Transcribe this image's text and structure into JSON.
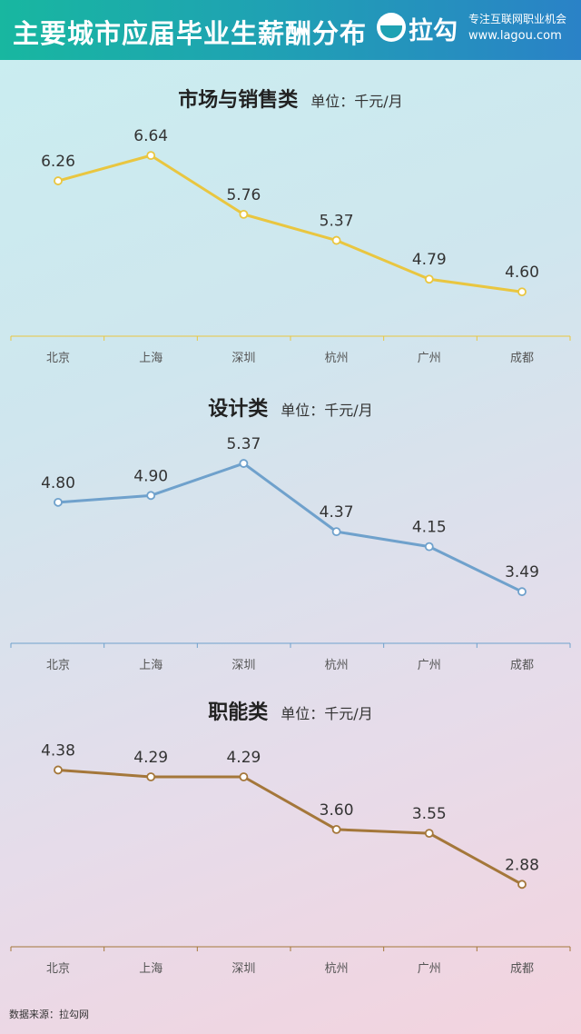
{
  "header": {
    "title": "主要城市应届毕业生薪酬分布",
    "brand": "拉勾",
    "slogan": "专注互联网职业机会",
    "site": "www.lagou.com",
    "logo_icon": "lagou-smile-logo-icon"
  },
  "chart_data": [
    {
      "type": "line",
      "title": "市场与销售类",
      "unit": "单位：千元/月",
      "categories": [
        "北京",
        "上海",
        "深圳",
        "杭州",
        "广州",
        "成都"
      ],
      "values": [
        6.26,
        6.64,
        5.76,
        5.37,
        4.79,
        4.6
      ],
      "labels": [
        "6.26",
        "6.64",
        "5.76",
        "5.37",
        "4.79",
        "4.60"
      ],
      "color": "#e9c640",
      "ylim": [
        4.1,
        6.9
      ],
      "grid": false
    },
    {
      "type": "line",
      "title": "设计类",
      "unit": "单位：千元/月",
      "categories": [
        "北京",
        "上海",
        "深圳",
        "杭州",
        "广州",
        "成都"
      ],
      "values": [
        4.8,
        4.9,
        5.37,
        4.37,
        4.15,
        3.49
      ],
      "labels": [
        "4.80",
        "4.90",
        "5.37",
        "4.37",
        "4.15",
        "3.49"
      ],
      "color": "#6fa1cc",
      "ylim": [
        3.0,
        5.85
      ],
      "grid": false
    },
    {
      "type": "line",
      "title": "职能类",
      "unit": "单位：千元/月",
      "categories": [
        "北京",
        "上海",
        "深圳",
        "杭州",
        "广州",
        "成都"
      ],
      "values": [
        4.38,
        4.29,
        4.29,
        3.6,
        3.55,
        2.88
      ],
      "labels": [
        "4.38",
        "4.29",
        "4.29",
        "3.60",
        "3.55",
        "2.88"
      ],
      "color": "#a4773a",
      "ylim": [
        2.3,
        4.85
      ],
      "grid": false
    }
  ],
  "footer": {
    "source": "数据来源：拉勾网"
  }
}
